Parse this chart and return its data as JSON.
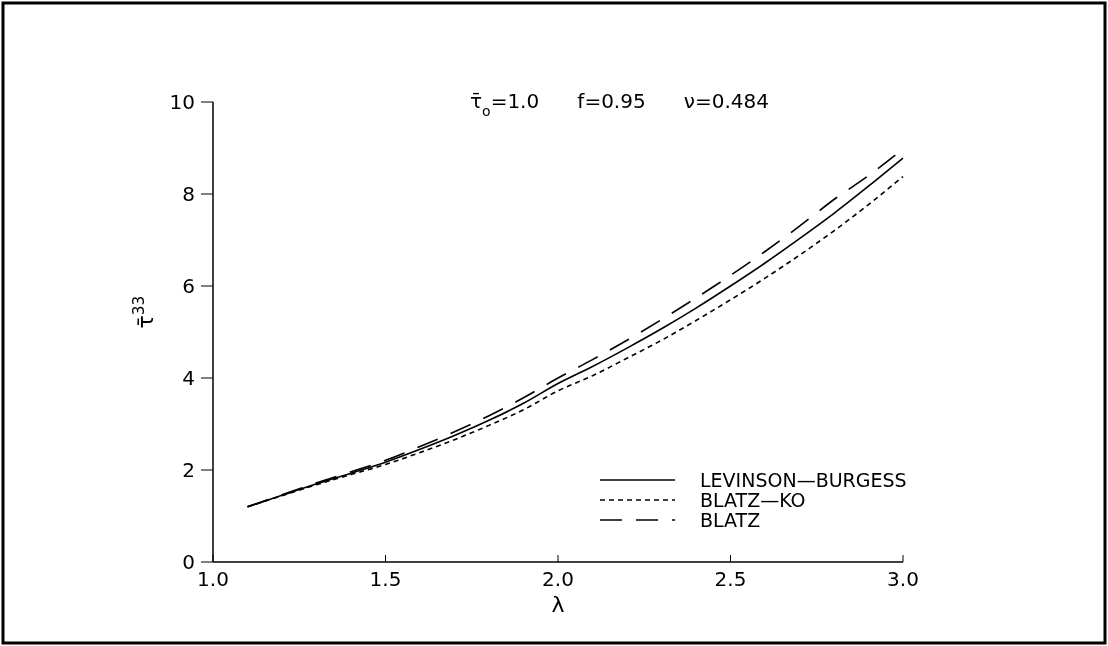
{
  "chart_data": {
    "type": "line",
    "xlabel": "λ",
    "ylabel": "τ̄$^{33}$",
    "annotations": [
      "τ̄$_{o}$=1.0      f=0.95      ν=0.484"
    ],
    "xlim": [
      1.0,
      3.0
    ],
    "xticks": [
      {
        "value": 1.0,
        "label": "1.0"
      },
      1.5,
      {
        "value": 2.0,
        "label": "2.0"
      },
      2.5,
      {
        "value": 3.0,
        "label": "3.0"
      }
    ],
    "ylim": [
      0,
      10
    ],
    "yticks": [
      0,
      2,
      4,
      6,
      8,
      10
    ],
    "grid": false,
    "legend": "bottom right",
    "marker": "none",
    "x": [
      1.1,
      1.2,
      1.3,
      1.4,
      1.5,
      1.6,
      1.7,
      1.8,
      1.9,
      2.0,
      2.1,
      2.2,
      2.3,
      2.4,
      2.5,
      2.6,
      2.7,
      2.8,
      2.9,
      3.0
    ],
    "series": [
      {
        "name": "LEVINSON—BURGESS",
        "color": "#000000",
        "line_style": "solid",
        "values": [
          1.2,
          1.45,
          1.7,
          1.93,
          2.17,
          2.45,
          2.75,
          3.08,
          3.45,
          3.88,
          4.25,
          4.65,
          5.07,
          5.52,
          6.0,
          6.5,
          7.03,
          7.58,
          8.17,
          8.78
        ]
      },
      {
        "name": "BLATZ—KO",
        "color": "#000000",
        "line_style": "dotted",
        "values": [
          1.2,
          1.44,
          1.68,
          1.9,
          2.12,
          2.38,
          2.66,
          2.97,
          3.31,
          3.72,
          4.05,
          4.43,
          4.82,
          5.25,
          5.7,
          6.17,
          6.67,
          7.2,
          7.77,
          8.38
        ]
      },
      {
        "name": "BLATZ",
        "color": "#000000",
        "line_style": "dashed",
        "values": [
          1.2,
          1.46,
          1.72,
          1.96,
          2.21,
          2.51,
          2.83,
          3.18,
          3.57,
          4.0,
          4.4,
          4.82,
          5.27,
          5.74,
          6.23,
          6.75,
          7.3,
          7.88,
          8.4,
          8.98
        ]
      }
    ]
  }
}
